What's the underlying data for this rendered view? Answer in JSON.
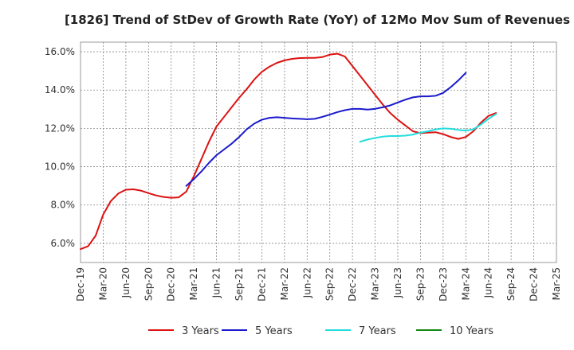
{
  "chart_data": {
    "type": "line",
    "title": "[1826]  Trend of StDev of Growth Rate (YoY) of 12Mo Mov Sum of Revenues",
    "xlabel": "",
    "ylabel": "",
    "ylim": [
      5.0,
      16.5
    ],
    "y_ticks": [
      6.0,
      8.0,
      10.0,
      12.0,
      14.0,
      16.0
    ],
    "y_tick_labels": [
      "6.0%",
      "8.0%",
      "10.0%",
      "12.0%",
      "14.0%",
      "16.0%"
    ],
    "x_start": "Dec-19",
    "x_tick_labels": [
      "Dec-19",
      "Mar-20",
      "Jun-20",
      "Sep-20",
      "Dec-20",
      "Mar-21",
      "Jun-21",
      "Sep-21",
      "Dec-21",
      "Mar-22",
      "Jun-22",
      "Sep-22",
      "Dec-22",
      "Mar-23",
      "Jun-23",
      "Sep-23",
      "Dec-23",
      "Mar-24",
      "Jun-24",
      "Sep-24",
      "Dec-24",
      "Mar-25"
    ],
    "grid": true,
    "legend_position": "bottom",
    "series": [
      {
        "name": "3 Years",
        "color": "#dd1111",
        "start_index": 0,
        "values": [
          5.7,
          5.85,
          6.4,
          7.5,
          8.2,
          8.6,
          8.8,
          8.82,
          8.75,
          8.62,
          8.5,
          8.42,
          8.38,
          8.4,
          8.7,
          9.5,
          10.4,
          11.3,
          12.1,
          12.6,
          13.1,
          13.6,
          14.05,
          14.55,
          14.95,
          15.22,
          15.42,
          15.55,
          15.63,
          15.67,
          15.68,
          15.68,
          15.72,
          15.85,
          15.9,
          15.75,
          15.25,
          14.75,
          14.25,
          13.75,
          13.25,
          12.8,
          12.45,
          12.15,
          11.85,
          11.75,
          11.78,
          11.8,
          11.7,
          11.55,
          11.45,
          11.55,
          11.85,
          12.3,
          12.65,
          12.8
        ]
      },
      {
        "name": "5 Years",
        "color": "#1a1acc",
        "start_index": 14,
        "values": [
          9.0,
          9.35,
          9.75,
          10.2,
          10.6,
          10.9,
          11.2,
          11.55,
          11.95,
          12.25,
          12.45,
          12.55,
          12.58,
          12.55,
          12.52,
          12.5,
          12.48,
          12.5,
          12.6,
          12.72,
          12.85,
          12.95,
          13.02,
          13.02,
          12.98,
          13.02,
          13.1,
          13.2,
          13.35,
          13.5,
          13.62,
          13.67,
          13.67,
          13.7,
          13.85,
          14.15,
          14.5,
          14.9
        ]
      },
      {
        "name": "7 Years",
        "color": "#22dddd",
        "start_index": 37,
        "values": [
          11.3,
          11.42,
          11.5,
          11.57,
          11.6,
          11.6,
          11.62,
          11.68,
          11.78,
          11.85,
          11.95,
          12.0,
          11.98,
          11.92,
          11.88,
          11.95,
          12.2,
          12.5,
          12.75
        ]
      },
      {
        "name": "10 Years",
        "color": "#118811",
        "start_index": 0,
        "values": []
      }
    ]
  }
}
